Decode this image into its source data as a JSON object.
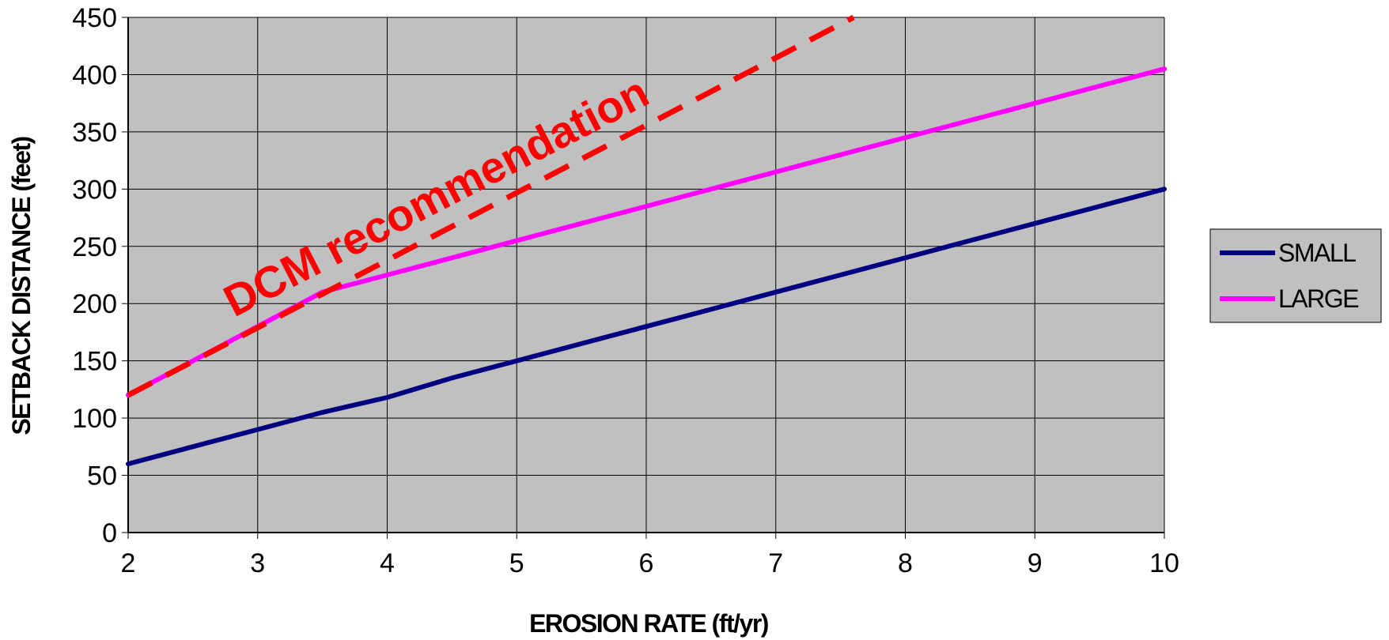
{
  "chart_data": {
    "type": "line",
    "xlabel": "EROSION RATE (ft/yr)",
    "ylabel": "SETBACK DISTANCE (feet)",
    "xlim": [
      2,
      10
    ],
    "ylim": [
      0,
      450
    ],
    "x_ticks": [
      2,
      3,
      4,
      5,
      6,
      7,
      8,
      9,
      10
    ],
    "y_ticks": [
      0,
      50,
      100,
      150,
      200,
      250,
      300,
      350,
      400,
      450
    ],
    "grid": true,
    "legend_position": "right",
    "plot_background": "#c0c0c0",
    "series": [
      {
        "name": "SMALL",
        "color": "#000080",
        "style": "solid",
        "x": [
          2,
          2.5,
          3,
          3.5,
          4,
          4.5,
          5,
          5.5,
          6,
          6.5,
          7,
          7.5,
          8,
          8.5,
          9,
          9.5,
          10
        ],
        "y": [
          60,
          75,
          90,
          105,
          118,
          135,
          150,
          165,
          180,
          195,
          210,
          225,
          240,
          255,
          270,
          285,
          300
        ]
      },
      {
        "name": "LARGE",
        "color": "#ff00ff",
        "style": "solid",
        "x": [
          2,
          2.5,
          3,
          3.5,
          4,
          4.5,
          5,
          5.5,
          6,
          6.5,
          7,
          7.5,
          8,
          8.5,
          9,
          9.5,
          10
        ],
        "y": [
          120,
          150,
          180,
          210,
          225,
          240,
          255,
          270,
          285,
          300,
          315,
          330,
          345,
          360,
          375,
          390,
          405
        ]
      }
    ],
    "reference_line": {
      "color": "#ff0000",
      "style": "dashed",
      "x": [
        2,
        7.6
      ],
      "y": [
        120,
        450
      ]
    },
    "annotations": [
      {
        "text": "DCM recommendation",
        "color": "#ff0000"
      }
    ]
  }
}
